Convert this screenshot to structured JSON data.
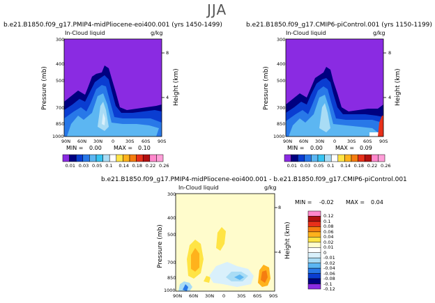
{
  "page": {
    "supertitle": "JJA"
  },
  "colors": {
    "purple": "#8a2be2",
    "navy": "#000080",
    "blue": "#0a3dd1",
    "midblue": "#2878e8",
    "sky": "#5cb6f2",
    "cyan": "#36c4f2",
    "paleblue": "#a9dcf5",
    "verypale": "#d9f0fb",
    "white": "#ffffff",
    "yellowbg": "#fffccc",
    "yellow": "#ffe445",
    "orange": "#ffb21c",
    "darkorange": "#f57d10",
    "red": "#e8301a",
    "darkred": "#b11010",
    "pink": "#ff88cc"
  },
  "chart_data": [
    {
      "type": "contour",
      "panel": "top-left",
      "title": "b.e21.B1850.f09_g17.PMIP4-midPliocene-eoi400.001 (yrs 1450-1499)",
      "subtitle": "In-Cloud liquid",
      "units": "g/kg",
      "ylabel": "Pressure (mb)",
      "ylabel_right": "Height (km)",
      "xticks": [
        "90N",
        "60N",
        "30N",
        "0",
        "30S",
        "60S",
        "90S"
      ],
      "yticks": [
        "300",
        "400",
        "500",
        "700",
        "850",
        "1000"
      ],
      "height_ticks": [
        "8",
        "4"
      ],
      "stats": {
        "min_label": "MIN =",
        "min": "0.00",
        "max_label": "MAX =",
        "max": "0.10"
      },
      "colorbar": [
        "0.01",
        "0.03",
        "0.05",
        "0.1",
        "0.14",
        "0.18",
        "0.22",
        "0.26"
      ]
    },
    {
      "type": "contour",
      "panel": "top-right",
      "title": "b.e21.B1850.f09_g17.CMIP6-piControl.001 (yrs 1150-1199)",
      "subtitle": "In-Cloud liquid",
      "units": "g/kg",
      "ylabel": "Pressure (mb)",
      "ylabel_right": "Height (km)",
      "xticks": [
        "90N",
        "60N",
        "30N",
        "0",
        "30S",
        "60S",
        "90S"
      ],
      "yticks": [
        "300",
        "400",
        "500",
        "700",
        "850",
        "1000"
      ],
      "height_ticks": [
        "8",
        "4"
      ],
      "stats": {
        "min_label": "MIN =",
        "min": "0.00",
        "max_label": "MAX =",
        "max": "0.09"
      },
      "colorbar": [
        "0.01",
        "0.03",
        "0.05",
        "0.1",
        "0.14",
        "0.18",
        "0.22",
        "0.26"
      ]
    },
    {
      "type": "contour",
      "panel": "bottom-difference",
      "title": "b.e21.B1850.f09_g17.PMIP4-midPliocene-eoi400.001 - b.e21.B1850.f09_g17.CMIP6-piControl.001",
      "subtitle": "In-Cloud liquid",
      "units": "g/kg",
      "ylabel": "Pressure (mb)",
      "ylabel_right": "Height (km)",
      "xticks": [
        "90N",
        "60N",
        "30N",
        "0",
        "30S",
        "60S",
        "90S"
      ],
      "yticks": [
        "300",
        "400",
        "500",
        "700",
        "850",
        "1000"
      ],
      "height_ticks": [
        "8",
        "4"
      ],
      "stats": {
        "min_label": "MIN =",
        "min": "-0.02",
        "max_label": "MAX =",
        "max": "0.04"
      },
      "colorbar": [
        "0.12",
        "0.1",
        "0.08",
        "0.06",
        "0.04",
        "0.02",
        "0.01",
        "0",
        "-0.01",
        "-0.02",
        "-0.04",
        "-0.06",
        "-0.08",
        "-0.1",
        "-0.12"
      ]
    }
  ]
}
